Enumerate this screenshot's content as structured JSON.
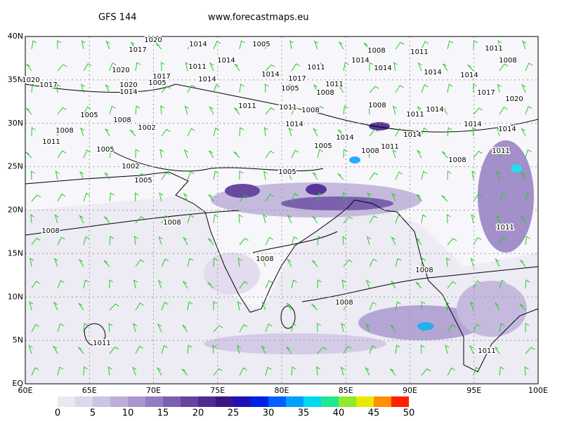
{
  "header": {
    "model": "GFS 144",
    "site": "www.forecastmaps.eu"
  },
  "map": {
    "lonlim": [
      60,
      100
    ],
    "latlim": [
      0,
      40
    ],
    "lat_ticks": [
      {
        "value": 40,
        "label": "40N"
      },
      {
        "value": 35,
        "label": "35N"
      },
      {
        "value": 30,
        "label": "30N"
      },
      {
        "value": 25,
        "label": "25N"
      },
      {
        "value": 20,
        "label": "20N"
      },
      {
        "value": 15,
        "label": "15N"
      },
      {
        "value": 10,
        "label": "10N"
      },
      {
        "value": 5,
        "label": "5N"
      },
      {
        "value": 0,
        "label": "EQ"
      }
    ],
    "lon_ticks": [
      {
        "value": 60,
        "label": "60E"
      },
      {
        "value": 65,
        "label": "65E"
      },
      {
        "value": 70,
        "label": "70E"
      },
      {
        "value": 75,
        "label": "75E"
      },
      {
        "value": 80,
        "label": "80E"
      },
      {
        "value": 85,
        "label": "85E"
      },
      {
        "value": 90,
        "label": "90E"
      },
      {
        "value": 95,
        "label": "95E"
      },
      {
        "value": 100,
        "label": "100E"
      }
    ],
    "grid": true,
    "isobar_labels": [
      "1020",
      "1017",
      "1014",
      "1005",
      "1008",
      "1011",
      "1011",
      "1008",
      "1020",
      "1011",
      "1014",
      "1014",
      "1014",
      "1011",
      "1017",
      "1005",
      "1017",
      "1020",
      "1020",
      "1014",
      "1014",
      "1014",
      "1017",
      "1011",
      "1005",
      "1008",
      "1014",
      "1014",
      "1017",
      "1020",
      "1008",
      "1002",
      "1005",
      "1008",
      "1011",
      "1005",
      "1002",
      "1005",
      "1005",
      "1014",
      "1005",
      "1014",
      "1008",
      "1011",
      "1014",
      "1011",
      "1014",
      "1014",
      "1014",
      "1011",
      "1008",
      "1008",
      "1008",
      "1008",
      "1008",
      "1011",
      "1008",
      "1011",
      "1011",
      "1008",
      "1011",
      "1011",
      "1008"
    ]
  },
  "colorbar": {
    "ticks": [
      0,
      5,
      10,
      15,
      20,
      25,
      30,
      35,
      40,
      45,
      50
    ],
    "step": 2.5,
    "colors": [
      "#ebe8f2",
      "#ddd6ec",
      "#cdc3e3",
      "#bcaed9",
      "#a996ce",
      "#937cc0",
      "#7c60b0",
      "#6545a0",
      "#4f2a90",
      "#3c1486",
      "#1e10b8",
      "#0020e8",
      "#0060ff",
      "#00a0ff",
      "#00d8f0",
      "#20e890",
      "#90e830",
      "#e8e800",
      "#ff9000",
      "#ff2000"
    ]
  }
}
